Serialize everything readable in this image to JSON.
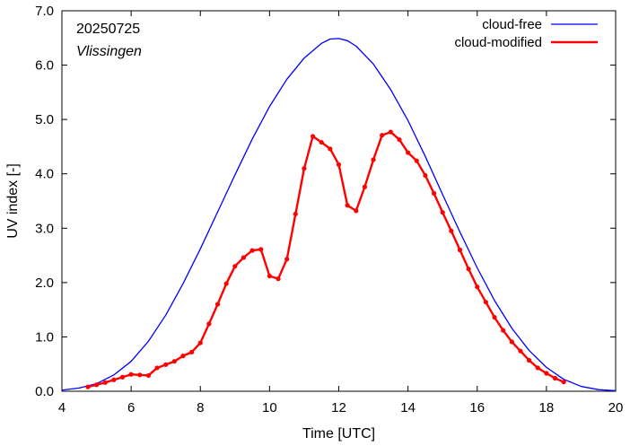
{
  "chart_data": {
    "type": "line",
    "xlabel": "Time  [UTC]",
    "ylabel": "UV index  [-]",
    "xlim": [
      4,
      20
    ],
    "ylim": [
      0,
      7
    ],
    "x_ticks": [
      "4",
      "6",
      "8",
      "10",
      "12",
      "14",
      "16",
      "18",
      "20"
    ],
    "y_ticks": [
      "0.0",
      "1.0",
      "2.0",
      "3.0",
      "4.0",
      "5.0",
      "6.0",
      "7.0"
    ],
    "grid": false,
    "legend_position": "top-right",
    "annotations": {
      "date": "20250725",
      "station": "Vlissingen"
    },
    "series": [
      {
        "name": "cloud-free",
        "color": "#0000ff",
        "markers": false,
        "x": [
          4.0,
          4.5,
          5.0,
          5.5,
          6.0,
          6.5,
          7.0,
          7.5,
          8.0,
          8.5,
          9.0,
          9.5,
          10.0,
          10.5,
          11.0,
          11.5,
          11.75,
          12.0,
          12.25,
          12.5,
          13.0,
          13.5,
          14.0,
          14.5,
          15.0,
          15.5,
          16.0,
          16.5,
          17.0,
          17.5,
          18.0,
          18.5,
          19.0,
          19.5,
          20.0
        ],
        "y": [
          0.02,
          0.06,
          0.14,
          0.3,
          0.55,
          0.92,
          1.4,
          1.98,
          2.62,
          3.3,
          3.98,
          4.64,
          5.24,
          5.74,
          6.13,
          6.4,
          6.48,
          6.49,
          6.45,
          6.35,
          6.02,
          5.55,
          4.98,
          4.32,
          3.62,
          2.93,
          2.27,
          1.67,
          1.16,
          0.75,
          0.44,
          0.22,
          0.09,
          0.03,
          0.01
        ]
      },
      {
        "name": "cloud-modified",
        "color": "#ff0000",
        "markers": true,
        "x": [
          4.75,
          5.0,
          5.25,
          5.5,
          5.75,
          6.0,
          6.25,
          6.5,
          6.75,
          7.0,
          7.25,
          7.5,
          7.75,
          8.0,
          8.25,
          8.5,
          8.75,
          9.0,
          9.25,
          9.5,
          9.75,
          10.0,
          10.25,
          10.5,
          10.75,
          11.0,
          11.25,
          11.5,
          11.75,
          12.0,
          12.25,
          12.5,
          12.75,
          13.0,
          13.25,
          13.5,
          13.75,
          14.0,
          14.25,
          14.5,
          14.75,
          15.0,
          15.25,
          15.5,
          15.75,
          16.0,
          16.25,
          16.5,
          16.75,
          17.0,
          17.25,
          17.5,
          17.75,
          18.0,
          18.25,
          18.5
        ],
        "y": [
          0.08,
          0.12,
          0.16,
          0.21,
          0.26,
          0.31,
          0.3,
          0.29,
          0.43,
          0.49,
          0.55,
          0.65,
          0.72,
          0.89,
          1.24,
          1.6,
          1.98,
          2.3,
          2.46,
          2.59,
          2.61,
          2.12,
          2.07,
          2.43,
          3.26,
          4.1,
          4.69,
          4.58,
          4.46,
          4.17,
          3.42,
          3.32,
          3.76,
          4.26,
          4.71,
          4.77,
          4.63,
          4.39,
          4.24,
          3.97,
          3.64,
          3.29,
          2.95,
          2.6,
          2.25,
          1.92,
          1.64,
          1.36,
          1.12,
          0.91,
          0.74,
          0.57,
          0.43,
          0.33,
          0.24,
          0.17
        ]
      }
    ]
  }
}
